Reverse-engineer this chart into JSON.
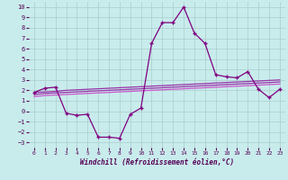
{
  "x": [
    0,
    1,
    2,
    3,
    4,
    5,
    6,
    7,
    8,
    9,
    10,
    11,
    12,
    13,
    14,
    15,
    16,
    17,
    18,
    19,
    20,
    21,
    22,
    23
  ],
  "line_main": [
    1.8,
    2.2,
    2.3,
    -0.2,
    -0.4,
    -0.3,
    -2.5,
    -2.5,
    -2.6,
    -0.3,
    0.3,
    6.5,
    8.5,
    8.5,
    10.0,
    7.5,
    6.5,
    3.5,
    3.3,
    3.2,
    3.8,
    2.1,
    1.3,
    2.1
  ],
  "line_reg1": [
    1.8,
    1.85,
    1.9,
    2.0,
    2.05,
    2.1,
    2.15,
    2.2,
    2.25,
    2.3,
    2.35,
    2.4,
    2.45,
    2.5,
    2.55,
    2.6,
    2.65,
    2.7,
    2.75,
    2.8,
    2.85,
    2.9,
    2.95,
    3.0
  ],
  "line_reg2": [
    1.6,
    1.7,
    1.75,
    1.8,
    1.85,
    1.9,
    1.95,
    2.0,
    2.05,
    2.1,
    2.15,
    2.2,
    2.25,
    2.3,
    2.35,
    2.4,
    2.45,
    2.5,
    2.55,
    2.6,
    2.65,
    2.7,
    2.75,
    2.8
  ],
  "line_reg3": [
    1.4,
    1.5,
    1.55,
    1.6,
    1.65,
    1.7,
    1.75,
    1.8,
    1.85,
    1.9,
    1.95,
    2.0,
    2.05,
    2.1,
    2.15,
    2.2,
    2.25,
    2.3,
    2.35,
    2.4,
    2.45,
    2.5,
    2.55,
    2.6
  ],
  "color_main": "#800080",
  "color_reg1": "#9933AA",
  "color_reg2": "#9933AA",
  "color_reg3": "#CC55CC",
  "bg_color": "#c8ecec",
  "grid_color": "#aacccc",
  "xlabel": "Windchill (Refroidissement éolien,°C)",
  "ylim": [
    -3.5,
    10.5
  ],
  "xlim": [
    -0.5,
    23.5
  ],
  "yticks": [
    -3,
    -2,
    -1,
    0,
    1,
    2,
    3,
    4,
    5,
    6,
    7,
    8,
    9,
    10
  ],
  "xticks": [
    0,
    1,
    2,
    3,
    4,
    5,
    6,
    7,
    8,
    9,
    10,
    11,
    12,
    13,
    14,
    15,
    16,
    17,
    18,
    19,
    20,
    21,
    22,
    23
  ]
}
